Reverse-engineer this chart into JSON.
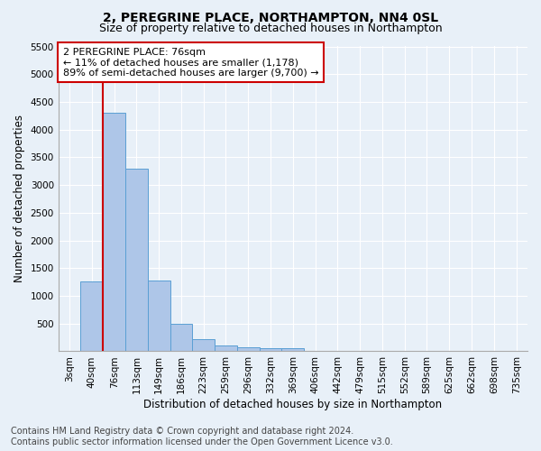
{
  "title": "2, PEREGRINE PLACE, NORTHAMPTON, NN4 0SL",
  "subtitle": "Size of property relative to detached houses in Northampton",
  "xlabel": "Distribution of detached houses by size in Northampton",
  "ylabel": "Number of detached properties",
  "footer_line1": "Contains HM Land Registry data © Crown copyright and database right 2024.",
  "footer_line2": "Contains public sector information licensed under the Open Government Licence v3.0.",
  "categories": [
    "3sqm",
    "40sqm",
    "76sqm",
    "113sqm",
    "149sqm",
    "186sqm",
    "223sqm",
    "259sqm",
    "296sqm",
    "332sqm",
    "369sqm",
    "406sqm",
    "442sqm",
    "479sqm",
    "515sqm",
    "552sqm",
    "589sqm",
    "625sqm",
    "662sqm",
    "698sqm",
    "735sqm"
  ],
  "values": [
    0,
    1260,
    4300,
    3300,
    1280,
    490,
    220,
    100,
    80,
    55,
    50,
    0,
    0,
    0,
    0,
    0,
    0,
    0,
    0,
    0,
    0
  ],
  "bar_color": "#aec6e8",
  "bar_edge_color": "#5a9fd4",
  "highlight_bar_index": 2,
  "highlight_color": "#cc0000",
  "annotation_text": "2 PEREGRINE PLACE: 76sqm\n← 11% of detached houses are smaller (1,178)\n89% of semi-detached houses are larger (9,700) →",
  "annotation_box_color": "#ffffff",
  "annotation_box_edge_color": "#cc0000",
  "ylim": [
    0,
    5500
  ],
  "yticks": [
    0,
    500,
    1000,
    1500,
    2000,
    2500,
    3000,
    3500,
    4000,
    4500,
    5000,
    5500
  ],
  "background_color": "#e8f0f8",
  "plot_background_color": "#e8f0f8",
  "grid_color": "#ffffff",
  "title_fontsize": 10,
  "subtitle_fontsize": 9,
  "axis_label_fontsize": 8.5,
  "tick_fontsize": 7.5,
  "annotation_fontsize": 8,
  "footer_fontsize": 7
}
